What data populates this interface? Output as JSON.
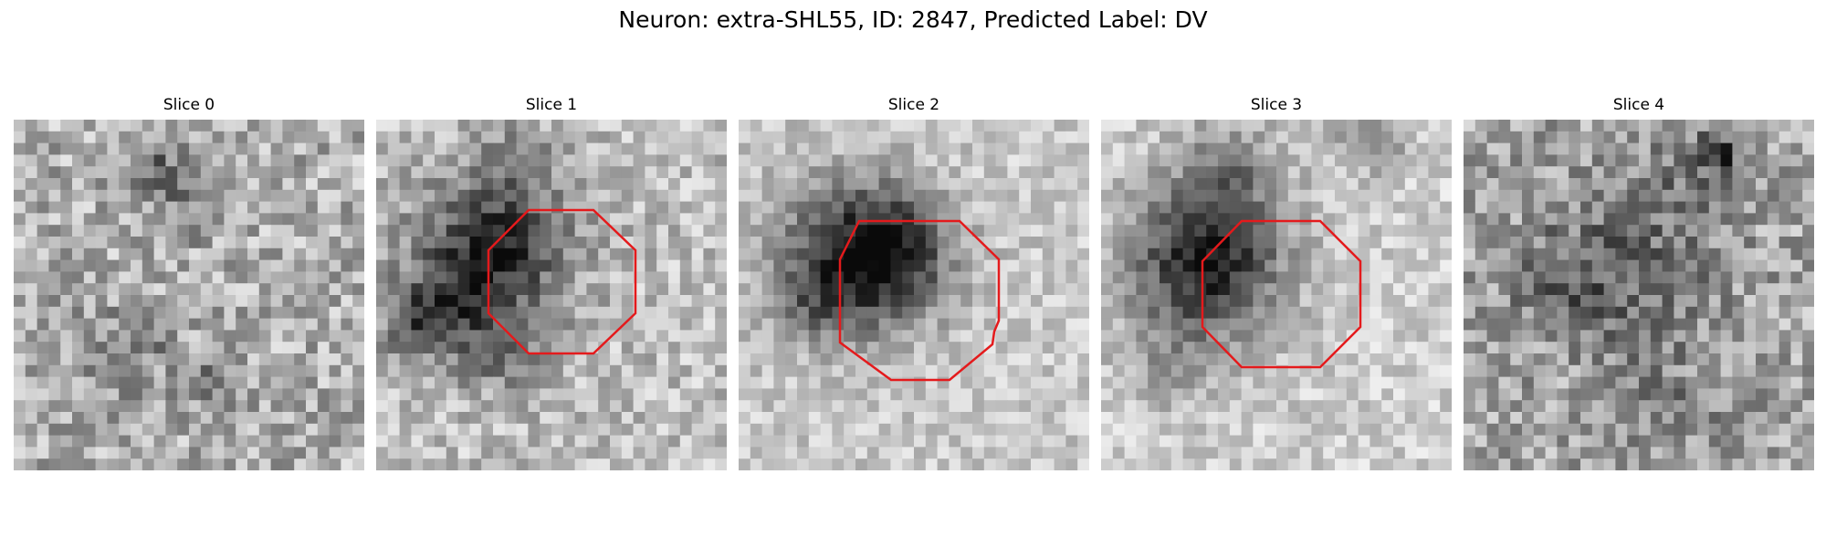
{
  "figure": {
    "title": "Neuron: extra-SHL55, ID: 2847, Predicted Label: DV"
  },
  "colors": {
    "background": "#ffffff",
    "roi_outline": "#e41a1c",
    "colormap": "grayscale"
  },
  "slices": [
    {
      "title": "Slice 0",
      "has_roi": false
    },
    {
      "title": "Slice 1",
      "has_roi": true
    },
    {
      "title": "Slice 2",
      "has_roi": true
    },
    {
      "title": "Slice 3",
      "has_roi": true
    },
    {
      "title": "Slice 4",
      "has_roi": false
    }
  ]
}
